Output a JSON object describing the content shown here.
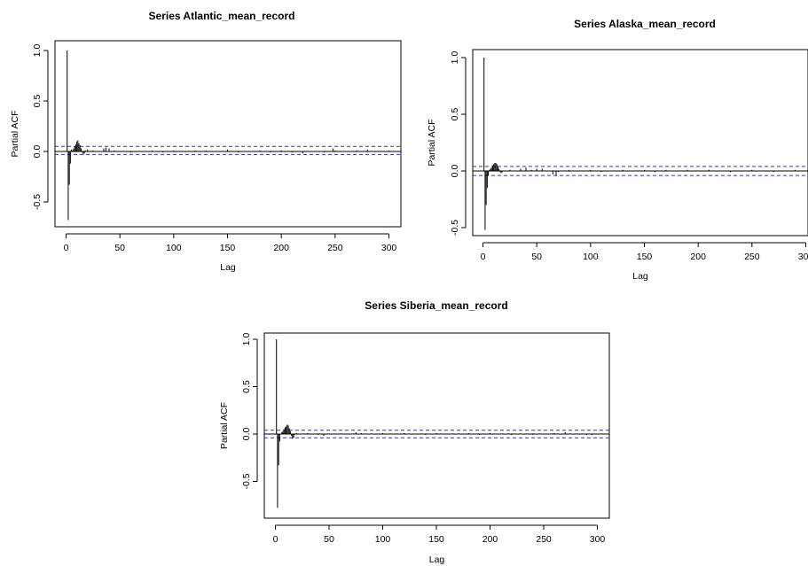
{
  "chart_data": [
    {
      "type": "bar",
      "title": "Series  Atlantic_mean_record",
      "xlabel": "Lag",
      "ylabel": "Partial ACF",
      "xlim": [
        0,
        310
      ],
      "ylim": [
        -0.8,
        1.05
      ],
      "xticks": [
        "0",
        "50",
        "100",
        "150",
        "200",
        "250",
        "300"
      ],
      "yticks": [
        "-0.5",
        "0.0",
        "0.5",
        "1.0"
      ],
      "confidence_bounds": [
        0.05,
        -0.03
      ],
      "bounds_color": "#3333cc",
      "lags": [
        1,
        2,
        3,
        4,
        5,
        6,
        7,
        8,
        9,
        10,
        11,
        12,
        13,
        14,
        15,
        16,
        17,
        18,
        19,
        20,
        25,
        30,
        35,
        37,
        40,
        45,
        50,
        60,
        70,
        80,
        90,
        100,
        110,
        120,
        130,
        140,
        150,
        160,
        170,
        180,
        190,
        200,
        210,
        220,
        230,
        240,
        248,
        250,
        260,
        270,
        280,
        290,
        300
      ],
      "values": [
        1.0,
        -0.68,
        -0.33,
        -0.12,
        0.02,
        0.01,
        0.03,
        0.05,
        0.07,
        0.1,
        0.11,
        0.08,
        0.06,
        0.03,
        -0.01,
        -0.03,
        -0.02,
        0.01,
        0.0,
        0.02,
        0.01,
        0.0,
        0.03,
        0.04,
        0.03,
        0.01,
        0.0,
        -0.01,
        0.0,
        0.01,
        -0.01,
        0.01,
        0.0,
        0.01,
        0.01,
        0.0,
        0.02,
        -0.01,
        0.0,
        0.01,
        -0.01,
        0.01,
        -0.01,
        -0.02,
        0.0,
        -0.01,
        0.03,
        0.01,
        0.0,
        0.01,
        0.02,
        0.0,
        0.01
      ]
    },
    {
      "type": "bar",
      "title": "Series  Alaska_mean_record",
      "xlabel": "Lag",
      "ylabel": "Partial ACF",
      "xlim": [
        0,
        310
      ],
      "ylim": [
        -0.55,
        1.05
      ],
      "xticks": [
        "0",
        "50",
        "100",
        "150",
        "200",
        "250",
        "300"
      ],
      "yticks": [
        "-0.5",
        "0.0",
        "0.5",
        "1.0"
      ],
      "confidence_bounds": [
        0.04,
        -0.04
      ],
      "bounds_color": "#3333cc",
      "lags": [
        1,
        2,
        3,
        4,
        5,
        6,
        7,
        8,
        9,
        10,
        11,
        12,
        13,
        14,
        15,
        16,
        17,
        18,
        20,
        25,
        30,
        35,
        40,
        45,
        50,
        55,
        60,
        65,
        68,
        70,
        80,
        90,
        100,
        110,
        120,
        130,
        140,
        150,
        160,
        170,
        180,
        190,
        200,
        210,
        220,
        230,
        240,
        250,
        260,
        270,
        280,
        290,
        300
      ],
      "values": [
        1.0,
        -0.52,
        -0.3,
        -0.15,
        -0.04,
        0.01,
        0.02,
        0.03,
        0.05,
        0.06,
        0.07,
        0.07,
        0.06,
        0.04,
        0.02,
        -0.01,
        -0.02,
        -0.01,
        0.0,
        0.01,
        0.0,
        0.02,
        0.03,
        0.01,
        0.02,
        0.02,
        0.0,
        -0.03,
        -0.04,
        -0.01,
        0.01,
        0.0,
        0.01,
        -0.01,
        0.0,
        0.01,
        0.0,
        0.01,
        -0.01,
        0.01,
        0.0,
        0.01,
        0.0,
        0.01,
        0.0,
        -0.01,
        0.0,
        0.01,
        0.0,
        -0.01,
        0.0,
        0.01,
        0.0
      ]
    },
    {
      "type": "bar",
      "title": "Series  Siberia_mean_record",
      "xlabel": "Lag",
      "ylabel": "Partial ACF",
      "xlim": [
        0,
        310
      ],
      "ylim": [
        -0.8,
        1.05
      ],
      "xticks": [
        "0",
        "50",
        "100",
        "150",
        "200",
        "250",
        "300"
      ],
      "yticks": [
        "-0.5",
        "0.0",
        "0.5",
        "1.0"
      ],
      "confidence_bounds": [
        0.04,
        -0.04
      ],
      "bounds_color": "#3333cc",
      "lags": [
        1,
        2,
        3,
        4,
        5,
        6,
        7,
        8,
        9,
        10,
        11,
        12,
        13,
        14,
        15,
        16,
        17,
        18,
        20,
        25,
        30,
        35,
        40,
        45,
        50,
        60,
        70,
        75,
        80,
        90,
        100,
        110,
        120,
        130,
        140,
        150,
        160,
        170,
        180,
        190,
        200,
        210,
        220,
        230,
        240,
        250,
        260,
        270,
        280,
        290,
        295
      ],
      "values": [
        1.0,
        -0.78,
        -0.33,
        -0.08,
        0.0,
        0.02,
        0.03,
        0.05,
        0.07,
        0.08,
        0.1,
        0.09,
        0.06,
        0.03,
        -0.02,
        -0.05,
        -0.04,
        -0.01,
        0.01,
        0.0,
        0.01,
        0.0,
        -0.01,
        -0.02,
        0.0,
        0.0,
        0.0,
        0.02,
        0.01,
        0.0,
        0.01,
        0.0,
        0.01,
        0.0,
        -0.01,
        0.01,
        0.0,
        0.0,
        0.01,
        -0.01,
        0.01,
        0.0,
        -0.01,
        0.0,
        -0.01,
        0.0,
        0.01,
        0.02,
        0.0,
        -0.01,
        -0.01
      ]
    }
  ]
}
